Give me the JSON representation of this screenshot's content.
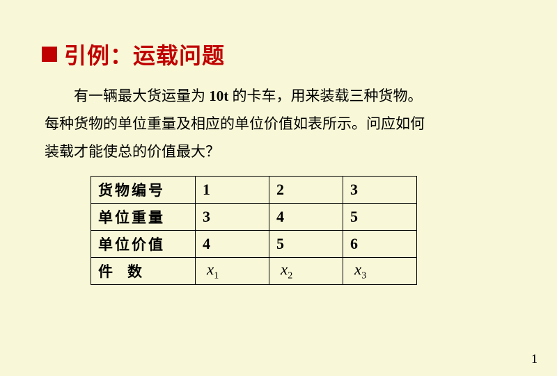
{
  "title": "引例：运载问题",
  "paragraph": {
    "line1_pre": "有一辆最大货运量为 ",
    "line1_bold": "10t",
    "line1_post": " 的卡车，用来装载三种货物。",
    "line2": "每种货物的单位重量及相应的单位价值如表所示。问应如何",
    "line3": "装载才能使总的价值最大？"
  },
  "table": {
    "rows": [
      {
        "label": "货物编号",
        "c1": "1",
        "c2": "2",
        "c3": "3",
        "type": "num"
      },
      {
        "label": "单位重量",
        "c1": "3",
        "c2": "4",
        "c3": "5",
        "type": "num"
      },
      {
        "label": "单位价值",
        "c1": "4",
        "c2": "5",
        "c3": "6",
        "type": "num"
      },
      {
        "label": "件　数",
        "c1": "x",
        "s1": "1",
        "c2": "x",
        "s2": "2",
        "c3": "x",
        "s3": "3",
        "type": "var"
      }
    ]
  },
  "page_number": "1",
  "colors": {
    "background": "#f8f8d8",
    "accent": "#c00000",
    "text": "#000000",
    "border": "#000000"
  }
}
